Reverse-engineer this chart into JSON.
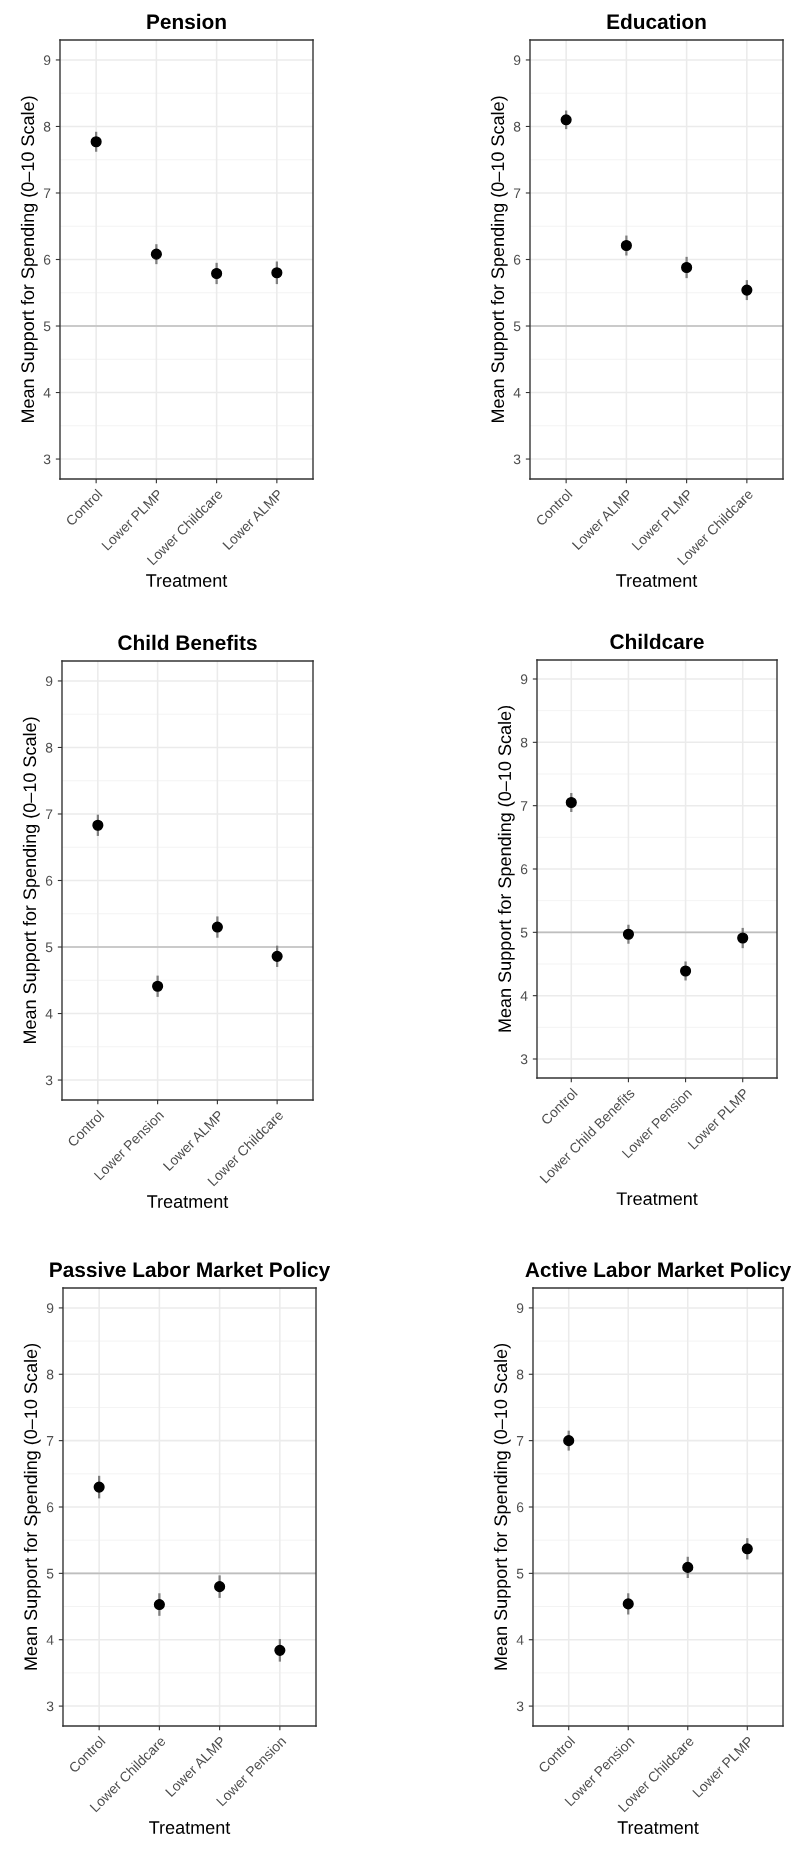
{
  "chart_data": [
    {
      "type": "scatter",
      "title": "Pension",
      "xlabel": "Treatment",
      "ylabel": "Mean Support for Spending (0–10 Scale)",
      "categories": [
        "Control",
        "Lower PLMP",
        "Lower Childcare",
        "Lower ALMP"
      ],
      "values": [
        7.77,
        6.08,
        5.79,
        5.8
      ],
      "errors": [
        0.15,
        0.15,
        0.16,
        0.17
      ],
      "color": "#000000",
      "marker": "circle",
      "ylim": [
        2.7,
        9.3
      ],
      "yticks": [
        3,
        4,
        5,
        6,
        7,
        8,
        9
      ],
      "grid": true,
      "ref_lines": [
        {
          "axis": "y",
          "value": 5,
          "color": "#bebebe"
        }
      ]
    },
    {
      "type": "scatter",
      "title": "Education",
      "xlabel": "Treatment",
      "ylabel": "Mean Support for Spending (0–10 Scale)",
      "categories": [
        "Control",
        "Lower ALMP",
        "Lower PLMP",
        "Lower Childcare"
      ],
      "values": [
        8.1,
        6.21,
        5.88,
        5.54
      ],
      "errors": [
        0.14,
        0.15,
        0.16,
        0.15
      ],
      "color": "#000000",
      "marker": "circle",
      "ylim": [
        2.7,
        9.3
      ],
      "yticks": [
        3,
        4,
        5,
        6,
        7,
        8,
        9
      ],
      "grid": true,
      "ref_lines": [
        {
          "axis": "y",
          "value": 5,
          "color": "#bebebe"
        }
      ]
    },
    {
      "type": "scatter",
      "title": "Child Benefits",
      "xlabel": "Treatment",
      "ylabel": "Mean Support for Spending (0–10 Scale)",
      "categories": [
        "Control",
        "Lower Pension",
        "Lower ALMP",
        "Lower Childcare"
      ],
      "values": [
        6.83,
        4.41,
        5.3,
        4.86
      ],
      "errors": [
        0.16,
        0.16,
        0.16,
        0.16
      ],
      "color": "#000000",
      "marker": "circle",
      "ylim": [
        2.7,
        9.3
      ],
      "yticks": [
        3,
        4,
        5,
        6,
        7,
        8,
        9
      ],
      "grid": true,
      "ref_lines": [
        {
          "axis": "y",
          "value": 5,
          "color": "#bebebe"
        }
      ]
    },
    {
      "type": "scatter",
      "title": "Childcare",
      "xlabel": "Treatment",
      "ylabel": "Mean Support for Spending (0–10 Scale)",
      "categories": [
        "Control",
        "Lower Child Benefits",
        "Lower Pension",
        "Lower PLMP"
      ],
      "values": [
        7.05,
        4.97,
        4.39,
        4.91
      ],
      "errors": [
        0.15,
        0.15,
        0.15,
        0.16
      ],
      "color": "#000000",
      "marker": "circle",
      "ylim": [
        2.7,
        9.3
      ],
      "yticks": [
        3,
        4,
        5,
        6,
        7,
        8,
        9
      ],
      "grid": true,
      "ref_lines": [
        {
          "axis": "y",
          "value": 5,
          "color": "#bebebe"
        }
      ]
    },
    {
      "type": "scatter",
      "title": "Passive Labor Market Policy",
      "xlabel": "Treatment",
      "ylabel": "Mean Support for Spending (0–10 Scale)",
      "categories": [
        "Control",
        "Lower Childcare",
        "Lower ALMP",
        "Lower Pension"
      ],
      "values": [
        6.3,
        4.53,
        4.8,
        3.84
      ],
      "errors": [
        0.17,
        0.17,
        0.17,
        0.17
      ],
      "color": "#000000",
      "marker": "circle",
      "ylim": [
        2.7,
        9.3
      ],
      "yticks": [
        3,
        4,
        5,
        6,
        7,
        8,
        9
      ],
      "grid": true,
      "ref_lines": [
        {
          "axis": "y",
          "value": 5,
          "color": "#bebebe"
        }
      ]
    },
    {
      "type": "scatter",
      "title": "Active Labor Market Policy",
      "xlabel": "Treatment",
      "ylabel": "Mean Support for Spending (0–10 Scale)",
      "categories": [
        "Control",
        "Lower Pension",
        "Lower Childcare",
        "Lower PLMP"
      ],
      "values": [
        7.0,
        4.54,
        5.09,
        5.37
      ],
      "errors": [
        0.15,
        0.16,
        0.16,
        0.16
      ],
      "color": "#000000",
      "marker": "circle",
      "ylim": [
        2.7,
        9.3
      ],
      "yticks": [
        3,
        4,
        5,
        6,
        7,
        8,
        9
      ],
      "grid": true,
      "ref_lines": [
        {
          "axis": "y",
          "value": 5,
          "color": "#bebebe"
        }
      ]
    }
  ]
}
